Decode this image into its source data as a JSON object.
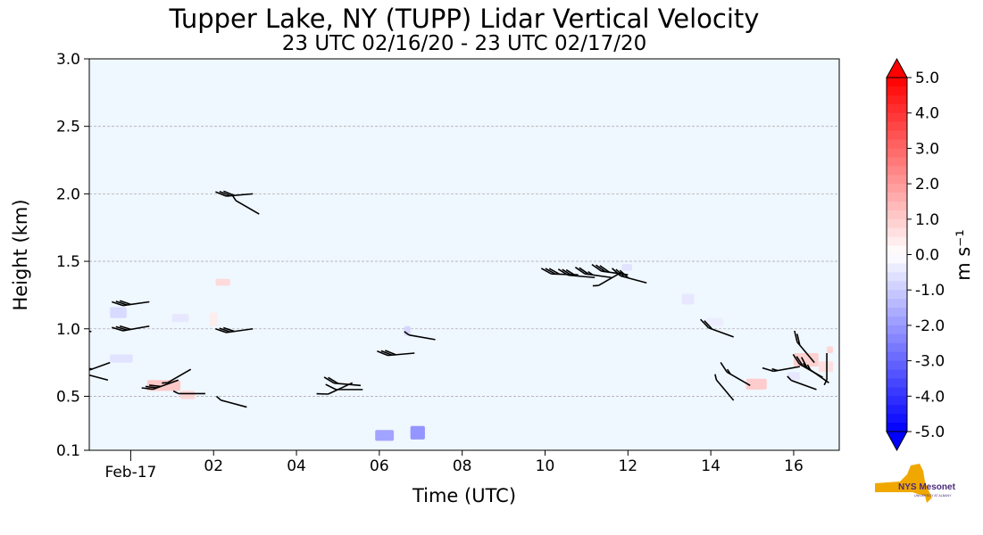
{
  "chart_data": {
    "type": "heatmap",
    "title": "Tupper Lake, NY (TUPP) Lidar Vertical Velocity",
    "subtitle": "23 UTC 02/16/20 - 23 UTC 02/17/20",
    "xlabel": "Time (UTC)",
    "ylabel": "Height (km)",
    "xlim": [
      23.0,
      41.1
    ],
    "ylim": [
      0.1,
      3.0
    ],
    "x_tick_values": [
      24,
      26,
      28,
      30,
      32,
      34,
      36,
      38,
      40
    ],
    "x_tick_labels": [
      "Feb-17",
      "02",
      "04",
      "06",
      "08",
      "10",
      "12",
      "14",
      "16"
    ],
    "y_tick_values": [
      0.1,
      0.5,
      1.0,
      1.5,
      2.0,
      2.5,
      3.0
    ],
    "y_tick_labels": [
      "0.1",
      "0.5",
      "1.0",
      "1.5",
      "2.0",
      "2.5",
      "3.0"
    ],
    "grid": "horizontal-dashed",
    "background_color": "#eff7ff",
    "colorbar": {
      "label": "m s⁻¹",
      "min": -5.0,
      "max": 5.0,
      "extend": "both",
      "tick_values": [
        5.0,
        4.0,
        3.0,
        2.0,
        1.0,
        0.0,
        -1.0,
        -2.0,
        -3.0,
        -4.0,
        -5.0
      ],
      "tick_labels": [
        "5.0",
        "4.0",
        "3.0",
        "2.0",
        "1.0",
        "0.0",
        "-1.0",
        "-2.0",
        "-3.0",
        "-4.0",
        "-5.0"
      ],
      "colors": {
        "low": "#0000ff",
        "mid": "#ffffff",
        "high": "#ff0000"
      }
    },
    "velocity_patches": [
      {
        "x": 26.05,
        "y": 1.32,
        "w": 0.35,
        "h": 0.05,
        "value": 0.8
      },
      {
        "x": 23.5,
        "y": 1.08,
        "w": 0.4,
        "h": 0.08,
        "value": -0.8
      },
      {
        "x": 25.0,
        "y": 1.05,
        "w": 0.4,
        "h": 0.06,
        "value": -0.5
      },
      {
        "x": 25.9,
        "y": 1.02,
        "w": 0.2,
        "h": 0.1,
        "value": 0.4
      },
      {
        "x": 23.5,
        "y": 0.75,
        "w": 0.55,
        "h": 0.06,
        "value": -0.6
      },
      {
        "x": 24.4,
        "y": 0.54,
        "w": 0.8,
        "h": 0.08,
        "value": 1.2
      },
      {
        "x": 25.2,
        "y": 0.48,
        "w": 0.35,
        "h": 0.06,
        "value": 0.9
      },
      {
        "x": 30.6,
        "y": 0.95,
        "w": 0.15,
        "h": 0.07,
        "value": -0.9
      },
      {
        "x": 29.9,
        "y": 0.17,
        "w": 0.45,
        "h": 0.08,
        "value": -2.0
      },
      {
        "x": 30.75,
        "y": 0.18,
        "w": 0.35,
        "h": 0.1,
        "value": -2.3
      },
      {
        "x": 35.85,
        "y": 1.43,
        "w": 0.25,
        "h": 0.05,
        "value": -0.6
      },
      {
        "x": 37.3,
        "y": 1.18,
        "w": 0.3,
        "h": 0.08,
        "value": -0.5
      },
      {
        "x": 37.9,
        "y": 1.02,
        "w": 0.4,
        "h": 0.06,
        "value": -0.4
      },
      {
        "x": 38.85,
        "y": 0.55,
        "w": 0.5,
        "h": 0.08,
        "value": 1.1
      },
      {
        "x": 40.0,
        "y": 0.72,
        "w": 0.6,
        "h": 0.1,
        "value": 1.0
      },
      {
        "x": 40.6,
        "y": 0.68,
        "w": 0.35,
        "h": 0.08,
        "value": 0.7
      },
      {
        "x": 39.85,
        "y": 0.62,
        "w": 0.3,
        "h": 0.06,
        "value": -0.5
      },
      {
        "x": 40.8,
        "y": 0.82,
        "w": 0.15,
        "h": 0.05,
        "value": 0.9
      }
    ],
    "wind_barbs": [
      {
        "x": 24.45,
        "y": 1.2,
        "dir": 262,
        "spd": 30
      },
      {
        "x": 24.45,
        "y": 1.02,
        "dir": 260,
        "spd": 30
      },
      {
        "x": 23.05,
        "y": 0.98,
        "dir": 275,
        "spd": 5
      },
      {
        "x": 23.5,
        "y": 0.75,
        "dir": 250,
        "spd": 30
      },
      {
        "x": 23.45,
        "y": 0.62,
        "dir": 285,
        "spd": 20
      },
      {
        "x": 25.15,
        "y": 0.62,
        "dir": 250,
        "spd": 30
      },
      {
        "x": 25.45,
        "y": 0.7,
        "dir": 240,
        "spd": 5
      },
      {
        "x": 26.8,
        "y": 0.42,
        "dir": 285,
        "spd": 5
      },
      {
        "x": 25.8,
        "y": 0.52,
        "dir": 270,
        "spd": 5
      },
      {
        "x": 26.95,
        "y": 2.0,
        "dir": 265,
        "spd": 30
      },
      {
        "x": 27.1,
        "y": 1.85,
        "dir": 300,
        "spd": 5
      },
      {
        "x": 26.95,
        "y": 1.0,
        "dir": 262,
        "spd": 30
      },
      {
        "x": 29.35,
        "y": 0.6,
        "dir": 245,
        "spd": 10
      },
      {
        "x": 29.55,
        "y": 0.58,
        "dir": 275,
        "spd": 20
      },
      {
        "x": 29.6,
        "y": 0.55,
        "dir": 270,
        "spd": 10
      },
      {
        "x": 30.85,
        "y": 0.82,
        "dir": 265,
        "spd": 30
      },
      {
        "x": 31.35,
        "y": 0.92,
        "dir": 280,
        "spd": 5
      },
      {
        "x": 34.8,
        "y": 1.4,
        "dir": 272,
        "spd": 30
      },
      {
        "x": 35.2,
        "y": 1.38,
        "dir": 275,
        "spd": 30
      },
      {
        "x": 35.6,
        "y": 1.38,
        "dir": 278,
        "spd": 25
      },
      {
        "x": 35.85,
        "y": 1.42,
        "dir": 240,
        "spd": 5
      },
      {
        "x": 36.0,
        "y": 1.4,
        "dir": 278,
        "spd": 30
      },
      {
        "x": 36.45,
        "y": 1.34,
        "dir": 285,
        "spd": 30
      },
      {
        "x": 38.55,
        "y": 0.94,
        "dir": 290,
        "spd": 20
      },
      {
        "x": 38.55,
        "y": 0.47,
        "dir": 320,
        "spd": 5
      },
      {
        "x": 38.95,
        "y": 0.58,
        "dir": 300,
        "spd": 15
      },
      {
        "x": 40.7,
        "y": 0.64,
        "dir": 300,
        "spd": 25
      },
      {
        "x": 40.55,
        "y": 0.55,
        "dir": 290,
        "spd": 5
      },
      {
        "x": 40.85,
        "y": 0.6,
        "dir": 305,
        "spd": 15
      },
      {
        "x": 40.5,
        "y": 0.75,
        "dir": 320,
        "spd": 20
      },
      {
        "x": 40.15,
        "y": 0.72,
        "dir": 260,
        "spd": 15
      },
      {
        "x": 40.8,
        "y": 0.82,
        "dir": 180,
        "spd": 5
      }
    ]
  },
  "logo": {
    "text": "NYS Mesonet",
    "subtext": "UNIVERSITY AT ALBANY",
    "primary": "#f0a800",
    "secondary": "#4a2a7a"
  }
}
